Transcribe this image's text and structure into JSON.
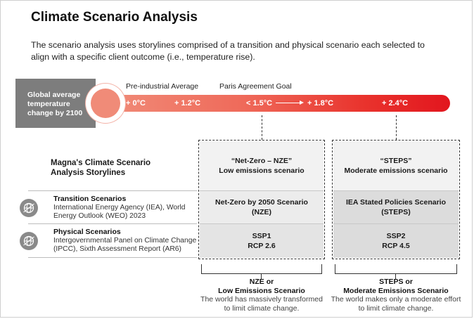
{
  "title": "Climate Scenario Analysis",
  "intro": "The scenario analysis uses storylines comprised of a transition and physical scenario each selected to align with a specific client outcome (i.e., temperature rise).",
  "thermometer": {
    "label_line1": "Global average",
    "label_line2": "temperature",
    "label_line3": "change by 2100",
    "scale_labels": [
      "Pre-industrial Average",
      "Paris Agreement Goal"
    ],
    "temps": [
      "+ 0°C",
      "+ 1.2°C",
      "< 1.5°C",
      "+ 1.8°C",
      "+ 2.4°C"
    ],
    "tube_gradient": [
      "#f08b78",
      "#e2161e"
    ]
  },
  "storylines": {
    "title_line1": "Magna's Climate Scenario",
    "title_line2": "Analysis Storylines",
    "columns": [
      {
        "header_line1": "“Net-Zero – NZE”",
        "header_line2": "Low emissions scenario",
        "transition_line1": "Net-Zero by 2050 Scenario",
        "transition_line2": "(NZE)",
        "physical_line1": "SSP1",
        "physical_line2": "RCP 2.6",
        "outcome_line1": "NZE or",
        "outcome_line2": "Low Emissions Scenario",
        "outcome_desc_line1": "The world has massively transformed",
        "outcome_desc_line2": "to limit climate change."
      },
      {
        "header_line1": "“STEPS”",
        "header_line2": "Moderate emissions scenario",
        "transition_line1": "IEA Stated Policies Scenario",
        "transition_line2": "(STEPS)",
        "physical_line1": "SSP2",
        "physical_line2": "RCP 4.5",
        "outcome_line1": "STEPS or",
        "outcome_line2": "Moderate Emissions Scenario",
        "outcome_desc_line1": "The world makes only a moderate effort",
        "outcome_desc_line2": "to limit climate change."
      }
    ],
    "rows": [
      {
        "title": "Transition Scenarios",
        "desc_line1": "International Energy Agency (IEA), World",
        "desc_line2": "Energy Outlook (WEO) 2023",
        "icon": "globe-icon"
      },
      {
        "title": "Physical Scenarios",
        "desc_line1": "Intergovernmental Panel on Climate Change",
        "desc_line2": "(IPCC), Sixth Assessment Report (AR6)",
        "icon": "globe-icon"
      }
    ]
  }
}
